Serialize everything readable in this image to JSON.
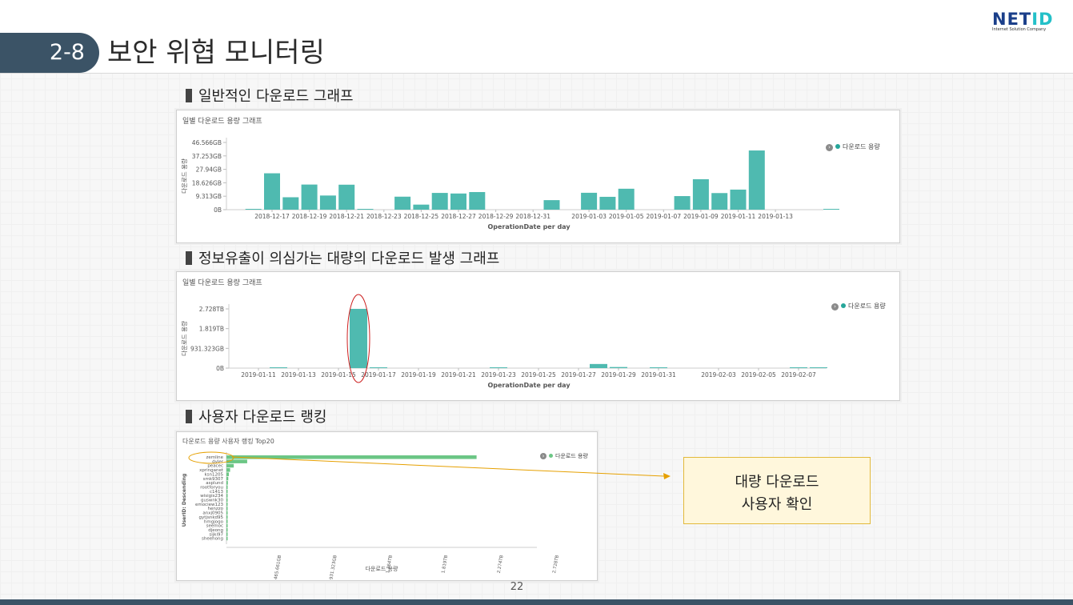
{
  "slide": {
    "number": "2-8",
    "title": "보안 위협 모니터링",
    "page": "22"
  },
  "logo": {
    "text_main": "NET",
    "text_accent": "ID",
    "subtitle": "Internet Solution Company"
  },
  "sections": {
    "s1": "일반적인 다운로드 그래프",
    "s2": "정보유출이 의심가는 대량의 다운로드 발생 그래프",
    "s3": "사용자 다운로드 랭킹"
  },
  "callout": {
    "line1": "대량 다운로드",
    "line2": "사용자 확인"
  },
  "colors": {
    "teal": "#4fbab0",
    "green": "#6cc685",
    "navy": "#3b5366",
    "highlight_red": "#cc2020",
    "highlight_orange": "#e6a000"
  },
  "chart_data": [
    {
      "type": "bar",
      "title": "일별 다운로드 용량 그래프",
      "xlabel": "OperationDate per day",
      "ylabel": "다운로드 용량",
      "legend": "다운로드 용량",
      "legend_position": "top-right",
      "yticks": [
        "46.566GB",
        "37.253GB",
        "27.94GB",
        "18.626GB",
        "9.313GB",
        "0B"
      ],
      "ylim": [
        0,
        46.566
      ],
      "xticks": [
        "2018-12-17",
        "2018-12-19",
        "2018-12-21",
        "2018-12-23",
        "2018-12-25",
        "2018-12-27",
        "2018-12-29",
        "2018-12-31",
        "2019-01-03",
        "2019-01-05",
        "2019-01-07",
        "2019-01-09",
        "2019-01-11",
        "2019-01-13"
      ],
      "bars": [
        {
          "date": "2018-12-16",
          "value": 0.3
        },
        {
          "date": "2018-12-17",
          "value": 25.2
        },
        {
          "date": "2018-12-18",
          "value": 8.6
        },
        {
          "date": "2018-12-19",
          "value": 17.4
        },
        {
          "date": "2018-12-20",
          "value": 9.8
        },
        {
          "date": "2018-12-21",
          "value": 17.3
        },
        {
          "date": "2018-12-22",
          "value": 0.4
        },
        {
          "date": "2018-12-24",
          "value": 9.0
        },
        {
          "date": "2018-12-25",
          "value": 3.5
        },
        {
          "date": "2018-12-26",
          "value": 11.6
        },
        {
          "date": "2018-12-27",
          "value": 11.2
        },
        {
          "date": "2018-12-28",
          "value": 12.2
        },
        {
          "date": "2019-01-01",
          "value": 6.6
        },
        {
          "date": "2019-01-03",
          "value": 11.7
        },
        {
          "date": "2019-01-04",
          "value": 8.9
        },
        {
          "date": "2019-01-05",
          "value": 14.5
        },
        {
          "date": "2019-01-08",
          "value": 9.4
        },
        {
          "date": "2019-01-09",
          "value": 21.1
        },
        {
          "date": "2019-01-10",
          "value": 11.5
        },
        {
          "date": "2019-01-11",
          "value": 13.9
        },
        {
          "date": "2019-01-12",
          "value": 41.0
        },
        {
          "date": "2019-01-16",
          "value": 0.2
        }
      ]
    },
    {
      "type": "bar",
      "title": "일별 다운로드 용량 그래프",
      "xlabel": "OperationDate per day",
      "ylabel": "다운로드 용량",
      "legend": "다운로드 용량",
      "legend_position": "top-right",
      "yticks": [
        "2.728TB",
        "1.819TB",
        "931.323GB",
        "0B"
      ],
      "ylim": [
        0,
        2.728
      ],
      "xticks": [
        "2019-01-11",
        "2019-01-13",
        "2019-01-15",
        "2019-01-17",
        "2019-01-19",
        "2019-01-21",
        "2019-01-23",
        "2019-01-25",
        "2019-01-27",
        "2019-01-29",
        "2019-01-31",
        "2019-02-03",
        "2019-02-05",
        "2019-02-07"
      ],
      "bars": [
        {
          "date": "2019-01-12",
          "value": 0.03
        },
        {
          "date": "2019-01-16",
          "value": 2.73
        },
        {
          "date": "2019-01-17",
          "value": 0.01
        },
        {
          "date": "2019-01-23",
          "value": 0.01
        },
        {
          "date": "2019-01-28",
          "value": 0.19
        },
        {
          "date": "2019-01-29",
          "value": 0.05
        },
        {
          "date": "2019-01-31",
          "value": 0.01
        },
        {
          "date": "2019-02-07",
          "value": 0.01
        },
        {
          "date": "2019-02-08",
          "value": 0.01
        }
      ]
    },
    {
      "type": "bar",
      "orientation": "horizontal",
      "title": "다운로드 용량 사용자 랭킹 Top20",
      "xlabel": "다운로드 용량",
      "ylabel": "UserID: Descending",
      "legend": "다운로드 용량",
      "legend_position": "top-right",
      "xticks": [
        "465.661GB",
        "931.323GB",
        "1.364TB",
        "1.819TB",
        "2.274TB",
        "2.728TB"
      ],
      "xlim": [
        0,
        2.728
      ],
      "categories": [
        "zemline",
        "dyler",
        "peacec",
        "xpringanet",
        "ksn1205",
        "smk9307",
        "asplund",
        "rootforyou",
        "c1413",
        "wisigis234",
        "guswnk30",
        "emociew123",
        "henzzo",
        "anxj0905",
        "gytjsnkd95",
        "hmgjogo",
        "seemoc",
        "djeong",
        "sijki97",
        "sheehong"
      ],
      "values": [
        2.05,
        0.17,
        0.06,
        0.03,
        0.02,
        0.015,
        0.012,
        0.01,
        0.009,
        0.008,
        0.007,
        0.006,
        0.006,
        0.005,
        0.005,
        0.004,
        0.004,
        0.003,
        0.003,
        0.003
      ]
    }
  ]
}
